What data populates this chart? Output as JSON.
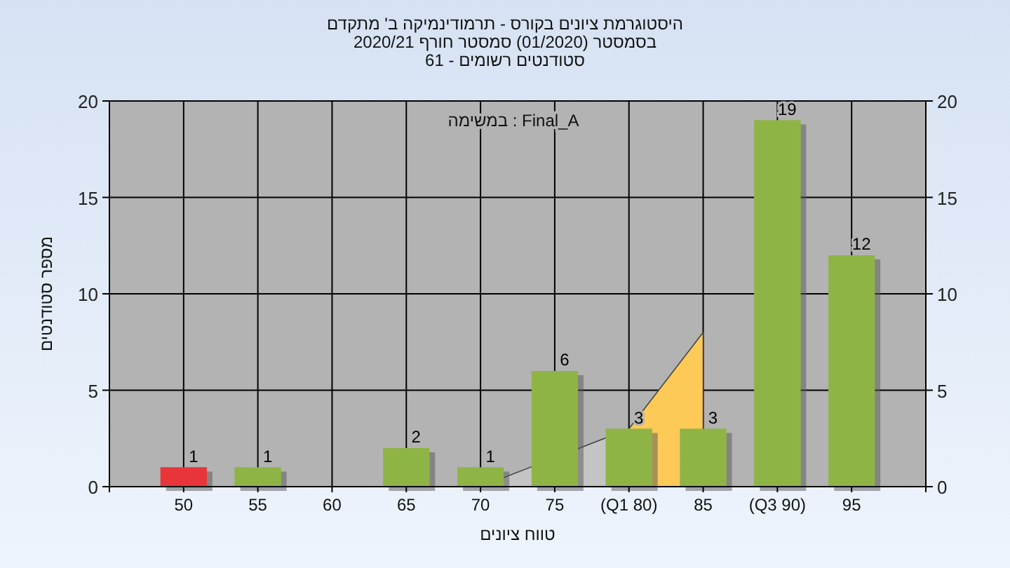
{
  "chart_data": {
    "type": "bar",
    "title": "היסטוגרמת ציונים בקורס - תרמודינמיקה ב' מתקדם",
    "subtitle": "בסמסטר  (01/2020)  סמסטר חורף 2020/21",
    "annotations": [
      "סטודנטים רשומים - 61",
      "במשימה : Final_A"
    ],
    "xlabel": "טווח ציונים",
    "ylabel": "מספר סטודנטים",
    "categories": [
      "50",
      "55",
      "60",
      "65",
      "70",
      "75",
      "(Q1 80)",
      "85",
      "(Q3 90)",
      "95"
    ],
    "series": [
      {
        "type": "area",
        "color": "#c4c4c4",
        "values": [
          null,
          null,
          null,
          null,
          0,
          null,
          3,
          null,
          null,
          null
        ]
      },
      {
        "type": "area",
        "color": "#fdca58",
        "values": [
          null,
          null,
          null,
          null,
          null,
          null,
          3,
          8,
          null,
          null
        ]
      },
      {
        "colors": [
          "#e8353a",
          "#8fb446",
          "#8fb446",
          "#8fb446",
          "#8fb446",
          "#8fb446",
          "#8fb446",
          "#8fb446",
          "#8fb446",
          "#8fb446"
        ],
        "values": [
          1,
          1,
          0,
          2,
          1,
          6,
          3,
          3,
          19,
          12
        ],
        "value_labels": [
          "1",
          "1",
          null,
          "2",
          "1",
          "6",
          "3",
          "3",
          "19",
          "12"
        ]
      }
    ],
    "ylim": [
      0,
      20
    ],
    "yticks": [
      0,
      5,
      10,
      15,
      20
    ],
    "y2lim": [
      0,
      20
    ],
    "y2ticks": [
      0,
      5,
      10,
      15,
      20
    ],
    "grid": true
  }
}
